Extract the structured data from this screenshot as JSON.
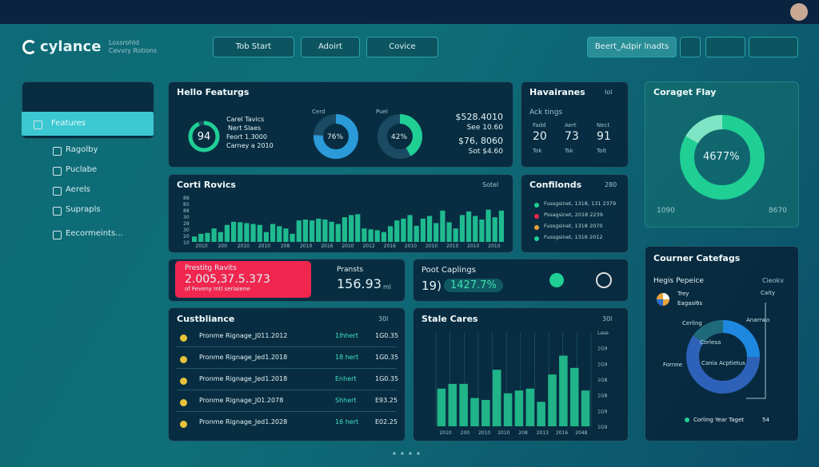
{
  "header": {
    "brand": "cylance",
    "tagline_1": "Lossrohld",
    "tagline_2": "Cevvry Rotions",
    "buttons": [
      "Tob Start",
      "Adoirt",
      "Covice"
    ],
    "search": "Beert_Adpir lnadts"
  },
  "sidebar": {
    "items": [
      "Features",
      "Ragolby",
      "Puclabe",
      "Aerels",
      "Suprapls",
      "Eecormeints..."
    ]
  },
  "hello": {
    "title": "Hello Featurgs",
    "gauge": 94,
    "lines": [
      "Carel Tavics",
      "Nert Slaes",
      "Feort 1.3000",
      "Carney a 2010"
    ],
    "donut1": {
      "label": "Cerd",
      "value": 76,
      "value_label": "76%"
    },
    "donut2": {
      "label": "Puel",
      "value": 42,
      "value_label": "42%"
    },
    "amounts": [
      "$528.4010",
      "See 10.60",
      "$76, 8060",
      "Sot $4.60"
    ]
  },
  "havairanes": {
    "title": "Havairanes",
    "tag": "Iol",
    "subtitle": "Ack tings",
    "stats": [
      {
        "label": "Fadd",
        "value": 20,
        "sub": "Tok"
      },
      {
        "label": "Aert",
        "value": 73,
        "sub": "Tsk"
      },
      {
        "label": "Nect",
        "value": 91,
        "sub": "Tolt"
      }
    ]
  },
  "coraget": {
    "title": "Coraget Flay",
    "value_label": "4677%",
    "min_label": "1090",
    "max_label": "8670"
  },
  "cort": {
    "title": "Corti Rovics",
    "tag": "Sotel",
    "ylabels": [
      "88",
      "85",
      "88",
      "30",
      "28",
      "30",
      "20",
      "10"
    ],
    "xlabels": [
      "2010",
      "200",
      "2010",
      "2010",
      "208",
      "2010",
      "2016",
      "2010",
      "2012",
      "2016",
      "2010",
      "2010",
      "2010",
      "2010",
      "2010"
    ],
    "bars": [
      12,
      18,
      20,
      30,
      22,
      38,
      45,
      44,
      42,
      40,
      38,
      22,
      40,
      35,
      30,
      18,
      48,
      50,
      48,
      52,
      50,
      45,
      40,
      55,
      60,
      62,
      30,
      28,
      26,
      22,
      35,
      48,
      52,
      60,
      36,
      52,
      58,
      42,
      70,
      44,
      30,
      60,
      68,
      58,
      50,
      72,
      55,
      70
    ]
  },
  "confilonds": {
    "title": "Confilonds",
    "tag": "280",
    "rows": [
      "Fussgsinet, 1318, 131 2379",
      "Pssagsinet, 2018 2239",
      "Fussgsinet, 1318 2070",
      "Fussgsinet, 1316 2012"
    ]
  },
  "prestige": {
    "title": "Prestitg Ravits",
    "value": "2.005,37.5.373",
    "sub": "of Feveny Intl seriaiene",
    "label": "Pransts",
    "amount": "156.93",
    "unit": "ml"
  },
  "poot": {
    "title": "Poot Caplings",
    "value": "19)",
    "pct": "1427.7%"
  },
  "courner": {
    "title": "Courner Catefags",
    "subtitle": "Hegis Pepeice",
    "tag": "Cieokv",
    "legend": [
      "Trey",
      "Eagasi6s"
    ],
    "labels": [
      "Caity",
      "Cerling",
      "Anarrwo",
      "Corlesa",
      "Cania Acptietus",
      "Fornne"
    ],
    "footer": "Corling Year Taget",
    "footer_value": "54"
  },
  "custbliance": {
    "title": "Custbliance",
    "tag": "30l",
    "rows": [
      [
        "Pronme Rignage_J011.2012",
        "1Ihhert",
        "1G0.35"
      ],
      [
        "Pronme Rignage_Jed1.2018",
        "18 hert",
        "1G0.35"
      ],
      [
        "Pronme Rignage_Jed1.2018",
        "Enhert",
        "1G0.35"
      ],
      [
        "Pronme Rignage_J01.2078",
        "Shhert",
        "E93.25"
      ],
      [
        "Pronme Rignage_Jed1.2028",
        "16 hert",
        "E02.25"
      ]
    ]
  },
  "stale": {
    "title": "Stale Cares",
    "tag": "30l",
    "ylabels": [
      "Lase",
      "1G9",
      "1G9",
      "1G8",
      "1G8",
      "1G9",
      "1G9"
    ],
    "xlabels": [
      "2010",
      "200",
      "2010",
      "2010",
      "208",
      "2013",
      "2016",
      "2048"
    ],
    "bars": [
      40,
      45,
      45,
      30,
      28,
      60,
      35,
      38,
      40,
      26,
      55,
      75,
      62,
      38
    ]
  }
}
